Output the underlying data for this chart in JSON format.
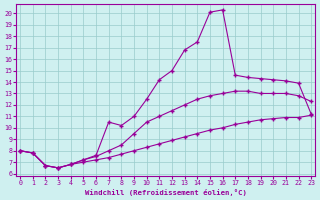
{
  "xlabel": "Windchill (Refroidissement éolien,°C)",
  "background_color": "#cff0f0",
  "line_color": "#990099",
  "grid_color": "#99cccc",
  "x_ticks": [
    0,
    1,
    2,
    3,
    4,
    5,
    6,
    7,
    8,
    9,
    10,
    11,
    12,
    13,
    14,
    15,
    16,
    17,
    18,
    19,
    20,
    21,
    22,
    23
  ],
  "y_ticks": [
    6,
    7,
    8,
    9,
    10,
    11,
    12,
    13,
    14,
    15,
    16,
    17,
    18,
    19,
    20
  ],
  "ylim": [
    5.8,
    20.8
  ],
  "xlim": [
    -0.3,
    23.3
  ],
  "lines": [
    {
      "x": [
        0,
        1,
        2,
        3,
        4,
        5,
        6,
        7,
        8,
        9,
        10,
        11,
        12,
        13,
        14,
        15,
        16,
        17,
        18,
        19,
        20,
        21,
        22,
        23
      ],
      "y": [
        8.0,
        7.8,
        6.7,
        6.5,
        6.8,
        7.0,
        7.2,
        7.4,
        7.7,
        8.0,
        8.3,
        8.6,
        8.9,
        9.2,
        9.5,
        9.8,
        10.0,
        10.3,
        10.5,
        10.7,
        10.8,
        10.9,
        10.9,
        11.1
      ]
    },
    {
      "x": [
        0,
        1,
        2,
        3,
        4,
        5,
        6,
        7,
        8,
        9,
        10,
        11,
        12,
        13,
        14,
        15,
        16,
        17,
        18,
        19,
        20,
        21,
        22,
        23
      ],
      "y": [
        8.0,
        7.8,
        6.7,
        6.5,
        6.8,
        7.2,
        7.5,
        8.0,
        8.5,
        9.5,
        10.5,
        11.0,
        11.5,
        12.0,
        12.5,
        12.8,
        13.0,
        13.2,
        13.2,
        13.0,
        13.0,
        13.0,
        12.8,
        12.3
      ]
    },
    {
      "x": [
        0,
        1,
        2,
        3,
        4,
        5,
        6,
        7,
        8,
        9,
        10,
        11,
        12,
        13,
        14,
        15,
        16,
        17,
        18,
        19,
        20,
        21,
        22,
        23
      ],
      "y": [
        8.0,
        7.8,
        6.7,
        6.5,
        6.8,
        7.2,
        7.6,
        10.5,
        10.2,
        11.0,
        12.5,
        14.2,
        15.0,
        16.8,
        17.5,
        20.1,
        20.3,
        14.6,
        14.4,
        14.3,
        14.2,
        14.1,
        13.9,
        11.2
      ]
    }
  ]
}
